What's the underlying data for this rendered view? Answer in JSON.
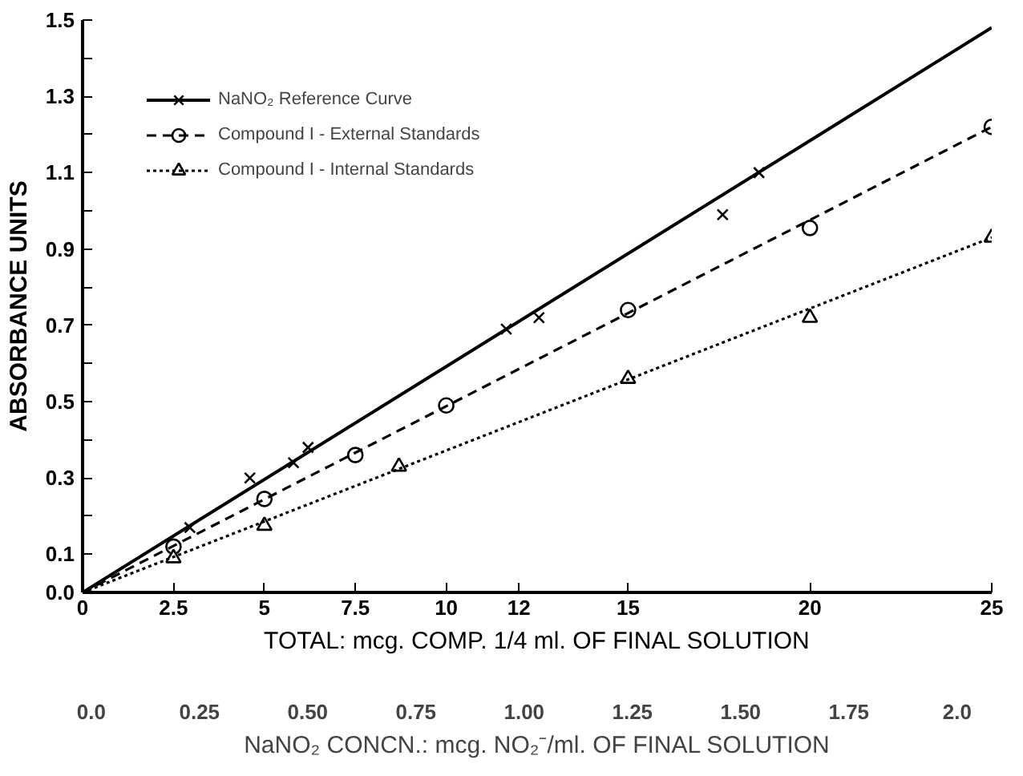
{
  "chart_data": {
    "type": "scatter",
    "xlabel": "TOTAL: mcg. COMP. 1/4 ml. OF FINAL SOLUTION",
    "ylabel": "ABSORBANCE UNITS",
    "x2label": "NaNO₂ CONCN.: mcg. NO₂⁻/ml. OF FINAL SOLUTION",
    "xlim": [
      0,
      25
    ],
    "ylim": [
      0,
      1.5
    ],
    "xticks": [
      0,
      2.5,
      5,
      7.5,
      10,
      12,
      15,
      20,
      25
    ],
    "yticks": [
      {
        "value": 0,
        "label": "0.0"
      },
      {
        "value": 0.1,
        "label": "0.1"
      },
      {
        "value": 0.2,
        "label": null
      },
      {
        "value": 0.3,
        "label": "0.3"
      },
      {
        "value": 0.4,
        "label": null
      },
      {
        "value": 0.5,
        "label": "0.5"
      },
      {
        "value": 0.6,
        "label": null
      },
      {
        "value": 0.7,
        "label": "0.7"
      },
      {
        "value": 0.8,
        "label": null
      },
      {
        "value": 0.9,
        "label": "0.9"
      },
      {
        "value": 1.0,
        "label": null
      },
      {
        "value": 1.1,
        "label": "1.1"
      },
      {
        "value": 1.2,
        "label": null
      },
      {
        "value": 1.3,
        "label": "1.3"
      },
      {
        "value": 1.4,
        "label": null
      },
      {
        "value": 1.5,
        "label": "1.5"
      }
    ],
    "x2lim": [
      -0.02,
      2.08
    ],
    "x2ticks": [
      {
        "value": 0,
        "label": "0.0"
      },
      {
        "value": 0.25,
        "label": "0.25"
      },
      {
        "value": 0.5,
        "label": "0.50"
      },
      {
        "value": 0.75,
        "label": "0.75"
      },
      {
        "value": 1.0,
        "label": "1.00"
      },
      {
        "value": 1.25,
        "label": "1.25"
      },
      {
        "value": 1.5,
        "label": "1.50"
      },
      {
        "value": 1.75,
        "label": "1.75"
      },
      {
        "value": 2.0,
        "label": "2.0"
      }
    ],
    "grid": false,
    "legend": "top left",
    "series": [
      {
        "name": "NaNO₂ Reference Curve",
        "marker": "cross",
        "color": "#000000",
        "x": [
          2.95,
          4.6,
          5.8,
          6.2,
          11.65,
          12.55,
          17.6,
          18.6
        ],
        "values": [
          0.17,
          0.3,
          0.34,
          0.38,
          0.69,
          0.72,
          0.99,
          1.1
        ]
      },
      {
        "type": "line",
        "line_style": "solid",
        "color": "#000000",
        "x": [
          0,
          25
        ],
        "values": [
          0,
          1.48
        ]
      },
      {
        "name": "Compound I - External Standards",
        "marker": "circle",
        "color": "#000000",
        "x": [
          2.5,
          5,
          7.5,
          10,
          15,
          20,
          25
        ],
        "values": [
          0.12,
          0.245,
          0.36,
          0.49,
          0.74,
          0.955,
          1.22
        ]
      },
      {
        "type": "line",
        "line_style": "dashed",
        "color": "#000000",
        "x": [
          0,
          25
        ],
        "values": [
          0,
          1.22
        ]
      },
      {
        "name": "Compound I - Internal Standards",
        "marker": "triangle",
        "color": "#000000",
        "x": [
          2.5,
          5,
          8.7,
          15,
          20,
          25
        ],
        "values": [
          0.09,
          0.175,
          0.33,
          0.56,
          0.72,
          0.93
        ]
      },
      {
        "type": "line",
        "line_style": "dotted",
        "color": "#000000",
        "x": [
          0,
          25
        ],
        "values": [
          0,
          0.93
        ]
      }
    ]
  }
}
